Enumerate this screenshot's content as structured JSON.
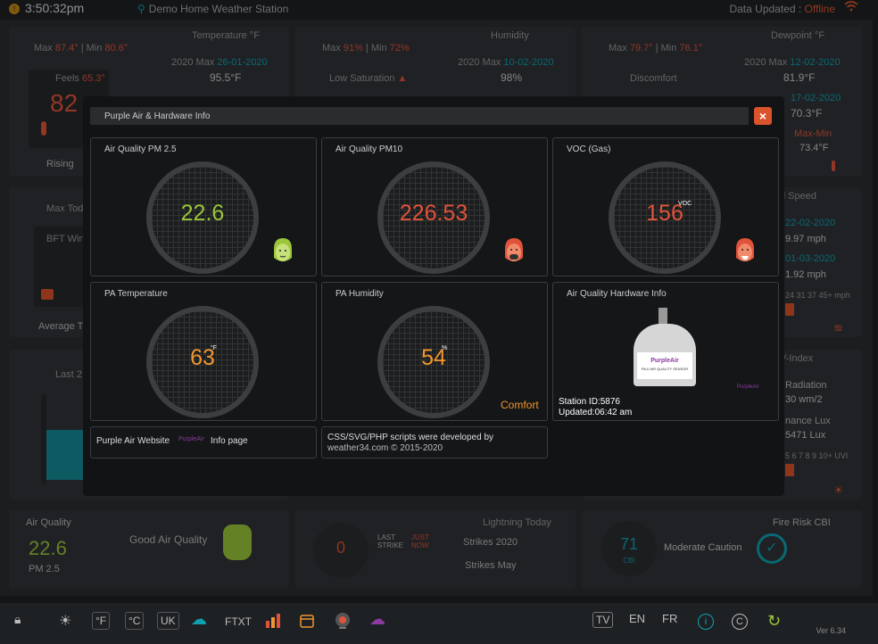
{
  "topbar": {
    "time": "3:50:32pm",
    "station_name": "Demo Home Weather Station",
    "data_updated_label": "Data Updated :",
    "data_updated_status": "Offline"
  },
  "background": {
    "temperature": {
      "title": "Temperature °F",
      "max_label": "Max",
      "max": "87.4°",
      "min_label": "Min",
      "min": "80.6°",
      "year_max": "2020 Max",
      "year_max_date": "26-01-2020",
      "year_max_value": "95.5°F",
      "feels": "Feels",
      "feels_value": "65.3°",
      "big": "82",
      "rising": "Rising"
    },
    "humidity": {
      "title": "Humidity",
      "max_label": "Max",
      "max": "91%",
      "min_label": "Min",
      "min": "72%",
      "year_max": "2020 Max",
      "year_max_date": "10-02-2020",
      "year_max_value": "98%",
      "low_saturation": "Low Saturation"
    },
    "dewpoint": {
      "title": "Dewpoint °F",
      "max_label": "Max",
      "max": "79.7°",
      "min_label": "Min",
      "min": "76.1°",
      "year_max": "2020 Max",
      "year_max_date": "12-02-2020",
      "year_max_value": "81.9°F",
      "discomfort": "Discomfort",
      "date2": "17-02-2020",
      "value2": "70.3°F",
      "maxmin": "Max-Min",
      "value3": "73.4°F"
    },
    "wind": {
      "max_today": "Max Tod",
      "bft": "BFT Win",
      "avg": "Average T",
      "speed_title": "d Speed",
      "date1": "22-02-2020",
      "val1": "9.97 mph",
      "date2": "01-03-2020",
      "val2": "1.92 mph",
      "scale": "24 31 37 45+ mph"
    },
    "rain": {
      "last": "Last 2"
    },
    "uv": {
      "title": "V-Index",
      "radiation": "Radiation",
      "radiation_value": "30 wm/2",
      "lux": "nance Lux",
      "lux_value": "5471 Lux",
      "scale": "5 6 7 8 9 10+ UVI"
    },
    "air_quality": {
      "title": "Air Quality",
      "value": "22.6",
      "unit": "PM 2.5",
      "status": "Good Air Quality"
    },
    "lightning": {
      "title": "Lightning Today",
      "count": "0",
      "last_strike": "LAST STRIKE",
      "just_now": "JUST NOW",
      "strikes_year": "Strikes 2020",
      "strikes_month": "Strikes May"
    },
    "fire": {
      "title": "Fire Risk CBI",
      "value": "71",
      "unit": "CBI",
      "status": "Moderate Caution"
    }
  },
  "modal": {
    "title": "Purple Air & Hardware Info",
    "close": "×",
    "cards": [
      {
        "label": "Air Quality PM 2.5",
        "value": "22.6",
        "unit": "",
        "color": "#9bc63a"
      },
      {
        "label": "Air Quality PM10",
        "value": "226.53",
        "unit": "",
        "color": "#e0533a"
      },
      {
        "label": "VOC (Gas)",
        "value": "156",
        "unit": "VOC",
        "color": "#e0533a"
      },
      {
        "label": "PA Temperature",
        "value": "63",
        "unit": "°F",
        "color": "#f0962e"
      },
      {
        "label": "PA Humidity",
        "value": "54",
        "unit": "%",
        "color": "#f0962e",
        "status": "Comfort"
      }
    ],
    "hardware": {
      "label": "Air Quality Hardware Info",
      "brand": "PurpleAir",
      "sensor": "PA-II AIR QUALITY SENSOR",
      "station_id": "Station ID:5876",
      "updated": "Updated:06:42 am"
    },
    "website": {
      "label": "Purple Air Website",
      "brand": "PurpleAir",
      "info": "Info page"
    },
    "credits": {
      "line1": "CSS/SVG/PHP scripts were developed by",
      "line2": "weather34.com © 2015-2020"
    }
  },
  "bottombar": {
    "f": "°F",
    "c": "°C",
    "uk": "UK",
    "ftxt": "FTXT",
    "tv": "TV",
    "en": "EN",
    "fr": "FR",
    "version": "Ver 6.34"
  },
  "colors": {
    "accent": "#0fa0b0",
    "orange": "#f0962e",
    "red": "#e0533a",
    "green": "#9bc63a",
    "purple": "#8b3a9f"
  }
}
